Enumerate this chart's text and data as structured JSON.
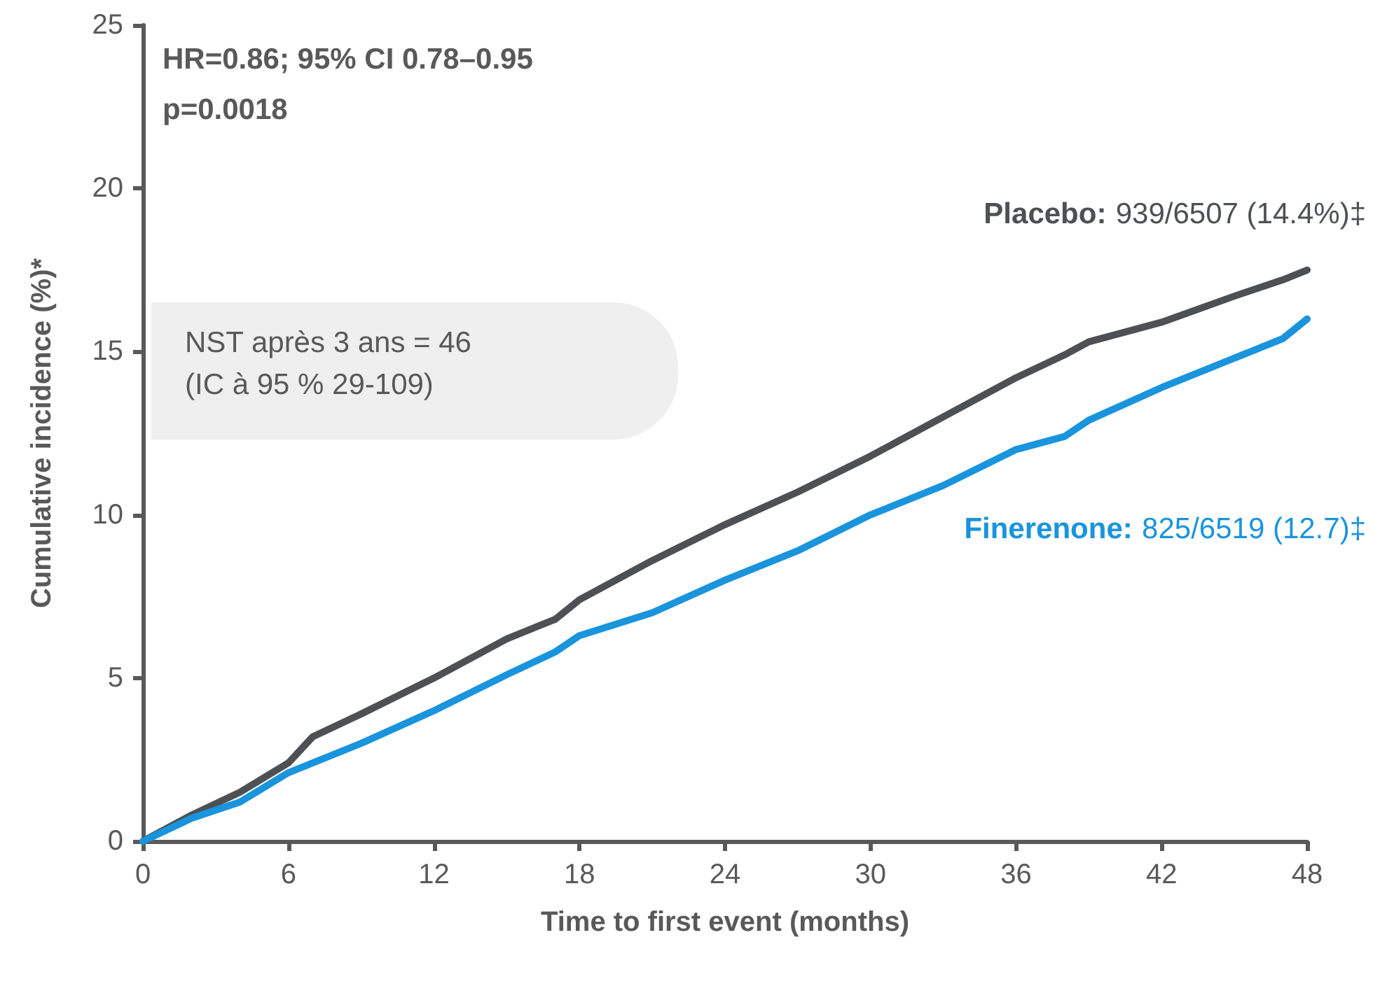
{
  "chart_data": {
    "type": "line",
    "xlabel": "Time to first event (months)",
    "ylabel": "Cumulative incidence (%)*",
    "x": [
      0,
      2,
      4,
      6,
      7,
      9,
      12,
      15,
      17,
      18,
      21,
      24,
      27,
      30,
      33,
      36,
      38,
      39,
      42,
      45,
      47,
      48
    ],
    "series": [
      {
        "name": "Placebo:",
        "color": "#4d5154",
        "values": [
          0,
          0.8,
          1.5,
          2.4,
          3.2,
          3.9,
          5.0,
          6.2,
          6.8,
          7.4,
          8.6,
          9.7,
          10.7,
          11.8,
          13.0,
          14.2,
          14.9,
          15.3,
          15.9,
          16.7,
          17.2,
          17.5
        ]
      },
      {
        "name": "Finerenone:",
        "color": "#1a94dc",
        "values": [
          0,
          0.7,
          1.2,
          2.1,
          2.4,
          3.0,
          4.0,
          5.1,
          5.8,
          6.3,
          7.0,
          8.0,
          8.9,
          10.0,
          10.9,
          12.0,
          12.4,
          12.9,
          13.9,
          14.8,
          15.4,
          16.0
        ]
      }
    ],
    "xlim": [
      0,
      48
    ],
    "xticks": [
      0,
      6,
      12,
      18,
      24,
      30,
      36,
      42,
      48
    ],
    "ylim": [
      0,
      25
    ],
    "yticks": [
      0,
      5,
      10,
      15,
      20,
      25
    ],
    "grid": false,
    "legend": false,
    "marker": "none",
    "line_style": "solid",
    "annotations": [
      "HR=0.86; 95% CI 0.78–0.95",
      "p=0.0018",
      "NST après 3 ans = 46\n(IC à 95 % 29-109)",
      "939/6507 (14.4%)‡",
      "825/6519 (12.7)‡"
    ]
  }
}
